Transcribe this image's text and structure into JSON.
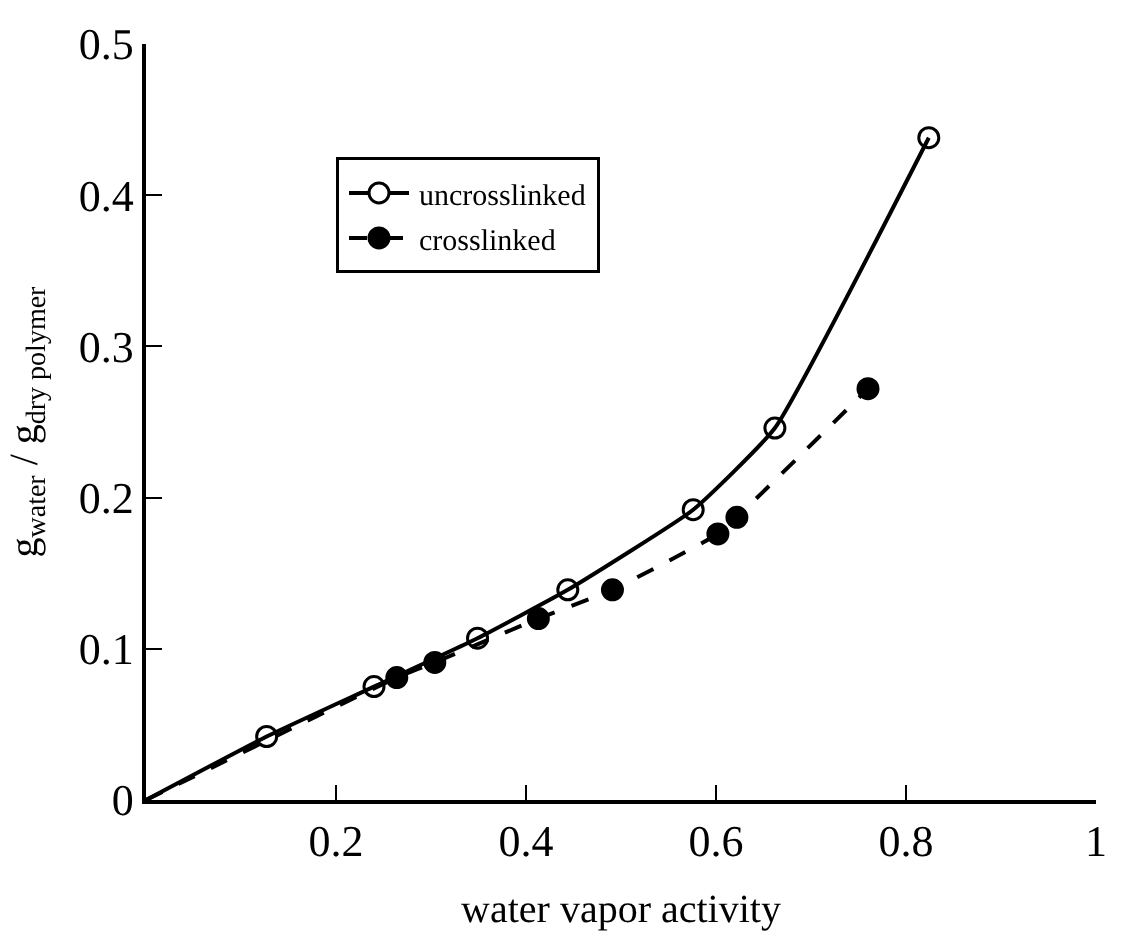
{
  "chart_data": {
    "type": "scatter",
    "xlabel": "water vapor activity",
    "ylabel": "g$_{water}$ / g$_{dry polymer}$",
    "series": [
      {
        "name": "uncrosslinked",
        "color": "#000000",
        "marker": "circle-open",
        "line_style": "solid",
        "x": [
          0.127,
          0.24,
          0.349,
          0.444,
          0.576,
          0.662,
          0.824
        ],
        "values": [
          0.042,
          0.075,
          0.107,
          0.139,
          0.192,
          0.246,
          0.438
        ]
      },
      {
        "name": "crosslinked",
        "color": "#000000",
        "marker": "circle",
        "line_style": "dashed",
        "x": [
          0.264,
          0.304,
          0.413,
          0.491,
          0.602,
          0.622,
          0.76
        ],
        "values": [
          0.081,
          0.091,
          0.12,
          0.139,
          0.176,
          0.187,
          0.272
        ]
      },
      {
        "type": "line",
        "color": "#000000",
        "marker": "none",
        "line_style": "solid",
        "x": [
          0,
          0.127,
          0.24,
          0.349,
          0.444,
          0.576,
          0.662,
          0.824
        ],
        "values": [
          0,
          0.042,
          0.075,
          0.107,
          0.139,
          0.192,
          0.246,
          0.438
        ]
      },
      {
        "type": "line",
        "color": "#000000",
        "marker": "none",
        "line_style": "dashed",
        "x": [
          0,
          0.264,
          0.304,
          0.413,
          0.491,
          0.602,
          0.622,
          0.76
        ],
        "values": [
          0,
          0.081,
          0.091,
          0.12,
          0.139,
          0.176,
          0.187,
          0.272
        ]
      }
    ],
    "xlim": [
      0,
      1
    ],
    "xticks": [
      0.2,
      0.4,
      0.6,
      0.8,
      1
    ],
    "ylim": [
      0,
      0.5
    ],
    "yticks": [
      0,
      0.1,
      0.2,
      0.3,
      0.4,
      0.5
    ],
    "legend": "top left"
  }
}
